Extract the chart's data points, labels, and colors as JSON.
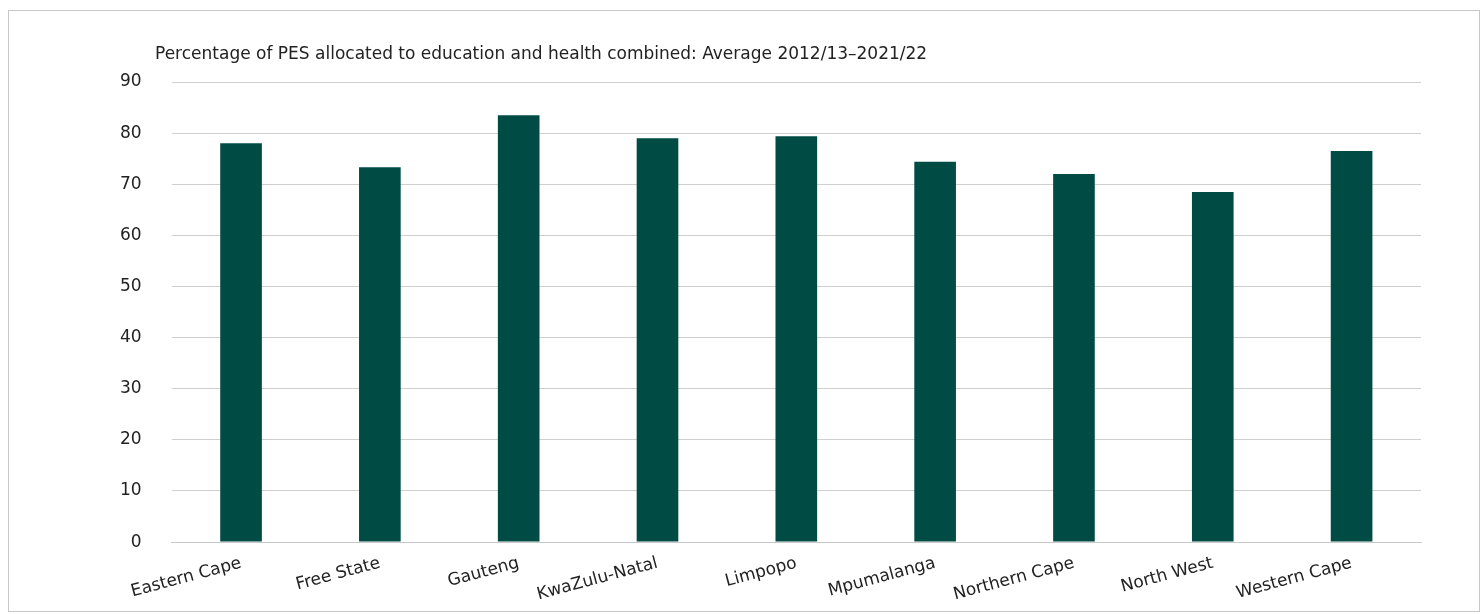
{
  "chart_data": {
    "type": "bar",
    "title": "Percentage of PES allocated to education and health combined: Average 2012/13–2021/22",
    "categories": [
      "Eastern Cape",
      "Free State",
      "Gauteng",
      "KwaZulu-Natal",
      "Limpopo",
      "Mpumalanga",
      "Northern Cape",
      "North West",
      "Western Cape"
    ],
    "values": [
      78,
      73.3,
      83.5,
      79,
      79.4,
      74.4,
      72,
      68.5,
      76.5
    ],
    "color": "#004c45",
    "ylim": [
      0,
      90
    ],
    "yticks": [
      0,
      10,
      20,
      30,
      40,
      50,
      60,
      70,
      80,
      90
    ],
    "grid": "y",
    "legend": false
  }
}
